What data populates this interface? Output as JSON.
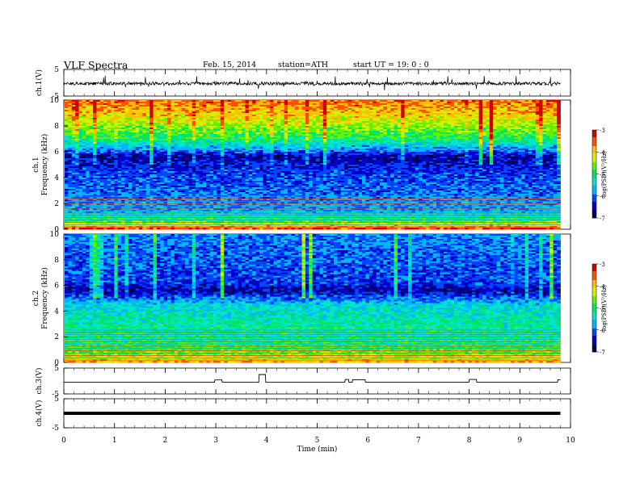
{
  "header": {
    "title": "VLF  Spectra",
    "date": "Feb. 15, 2014",
    "station": "station=ATH",
    "start_label": "start  UT =",
    "start_value": "19: 0  : 0"
  },
  "chart_data": [
    {
      "type": "line",
      "name": "ch1-waveform",
      "ylabel": "ch.1(V)",
      "ylim": [
        -5,
        5
      ],
      "yticks": [
        5,
        -5
      ],
      "xlim": [
        0,
        10
      ],
      "baseline": -0.3,
      "amplitude": 1.2
    },
    {
      "type": "heatmap",
      "name": "ch1-spectrogram",
      "ylabel_channel": "ch.1",
      "ylabel": "Frequency  (kHz)",
      "ylim": [
        0,
        10
      ],
      "yticks": [
        0,
        2,
        4,
        6,
        8,
        10
      ],
      "xlim": [
        0,
        9.8
      ],
      "colorbar": {
        "label": "log(PSD)(V²/Hz)",
        "range": [
          -7,
          -3
        ],
        "ticks": [
          -3,
          -4,
          -5,
          -6,
          -7
        ]
      },
      "profile_khz_vs_logpsd": [
        [
          0,
          -3.3
        ],
        [
          0.6,
          -4.8
        ],
        [
          1.5,
          -5.8
        ],
        [
          3,
          -6.0
        ],
        [
          4.5,
          -6.2
        ],
        [
          5.6,
          -6.6
        ],
        [
          6.2,
          -5.8
        ],
        [
          7,
          -5.0
        ],
        [
          8.5,
          -4.2
        ],
        [
          10,
          -3.6
        ]
      ]
    },
    {
      "type": "heatmap",
      "name": "ch2-spectrogram",
      "ylabel_channel": "ch.2",
      "ylabel": "Frequency  (kHz)",
      "ylim": [
        0,
        10
      ],
      "yticks": [
        0,
        2,
        4,
        6,
        8,
        10
      ],
      "xlim": [
        0,
        9.8
      ],
      "colorbar": {
        "label": "log(PSD)(V²/Hz)",
        "range": [
          -7,
          -3
        ],
        "ticks": [
          -3,
          -4,
          -5,
          -6,
          -7
        ]
      },
      "profile_khz_vs_logpsd": [
        [
          0,
          -3.8
        ],
        [
          0.6,
          -4.6
        ],
        [
          1.5,
          -5.0
        ],
        [
          3,
          -5.2
        ],
        [
          4.5,
          -5.5
        ],
        [
          5.6,
          -6.6
        ],
        [
          6.2,
          -6.2
        ],
        [
          7.5,
          -6.1
        ],
        [
          10,
          -5.9
        ]
      ]
    },
    {
      "type": "line",
      "name": "ch3-trace",
      "ylabel": "ch.3(V)",
      "ylim": [
        -5,
        5
      ],
      "yticks": [
        5,
        -5
      ],
      "xlim": [
        0,
        10
      ],
      "baseline": -0.5,
      "pulses": [
        [
          2.98,
          3.12,
          0.4
        ],
        [
          3.85,
          3.98,
          2.5
        ],
        [
          5.55,
          5.62,
          0.6
        ],
        [
          5.7,
          5.95,
          0.5
        ],
        [
          8.0,
          8.15,
          0.6
        ],
        [
          9.75,
          9.8,
          0.5
        ]
      ]
    },
    {
      "type": "line",
      "name": "ch4-trace",
      "ylabel": "ch.4(V)",
      "ylim": [
        -5,
        5
      ],
      "yticks": [
        5,
        -5
      ],
      "xlim": [
        0,
        10
      ],
      "baseline": 0
    }
  ],
  "xaxis": {
    "xlabel": "Time  (min)",
    "xlim": [
      0,
      10
    ],
    "ticks": [
      0,
      1,
      2,
      3,
      4,
      5,
      6,
      7,
      8,
      9,
      10
    ],
    "tick_labels": [
      "0",
      "1",
      "2",
      "3",
      "4",
      "5",
      "6",
      "7",
      "8",
      "9",
      "10"
    ]
  },
  "palette": [
    "#000050",
    "#0000c8",
    "#0046ff",
    "#00b4ff",
    "#00e6c8",
    "#00e664",
    "#64f000",
    "#d2f000",
    "#ffbe00",
    "#ff5000",
    "#d20000"
  ]
}
